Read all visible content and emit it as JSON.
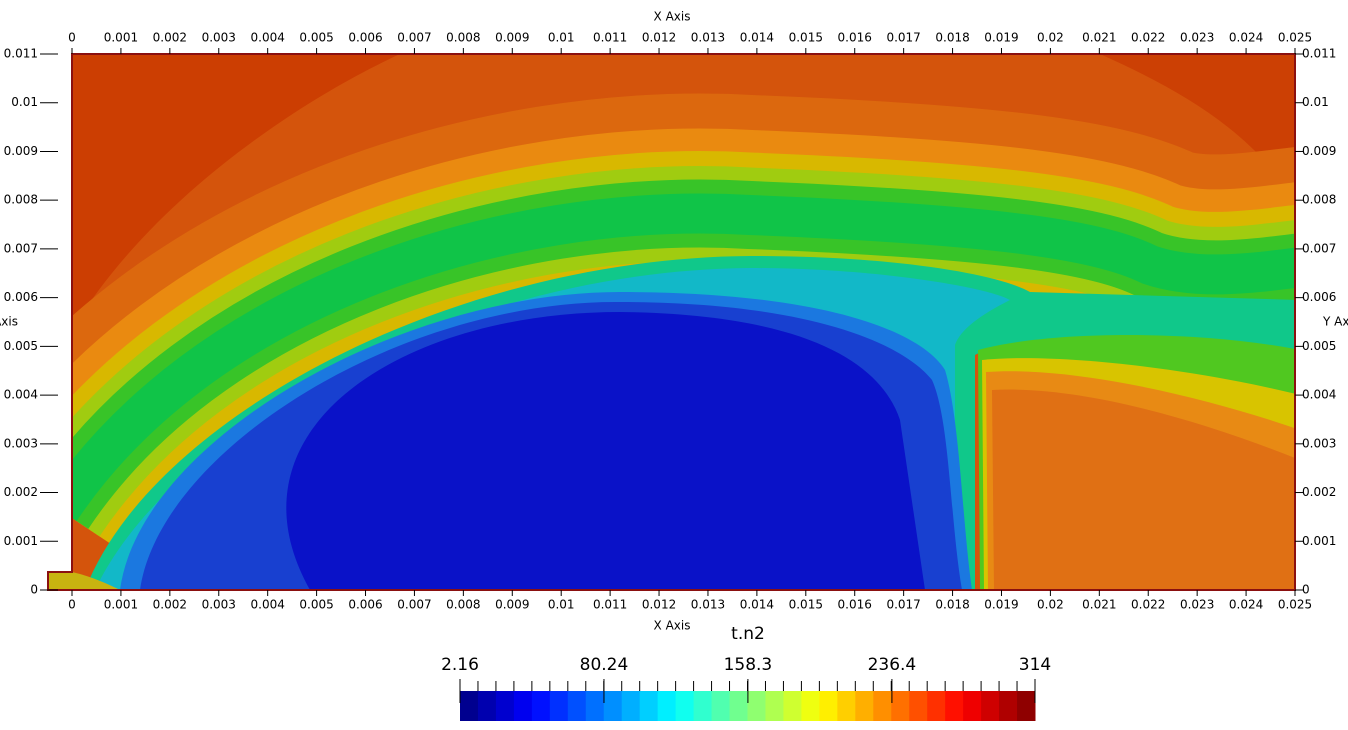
{
  "chart_data": {
    "type": "contour",
    "x_label": "X Axis",
    "y_label": "Y Axis",
    "xlim": [
      0,
      0.025
    ],
    "ylim": [
      0,
      0.011
    ],
    "xticks": [
      0,
      0.001,
      0.002,
      0.003,
      0.004,
      0.005,
      0.006,
      0.007,
      0.008,
      0.009,
      0.01,
      0.011,
      0.012,
      0.013,
      0.014,
      0.015,
      0.016,
      0.017,
      0.018,
      0.019,
      0.02,
      0.021,
      0.022,
      0.023,
      0.024,
      0.025
    ],
    "yticks": [
      0,
      0.001,
      0.002,
      0.003,
      0.004,
      0.005,
      0.006,
      0.007,
      0.008,
      0.009,
      0.01,
      0.011
    ],
    "colorbar": {
      "title": "t.n2",
      "lim": [
        2.16,
        314
      ],
      "ticks": [
        2.16,
        80.24,
        158.3,
        236.4,
        314
      ]
    }
  }
}
